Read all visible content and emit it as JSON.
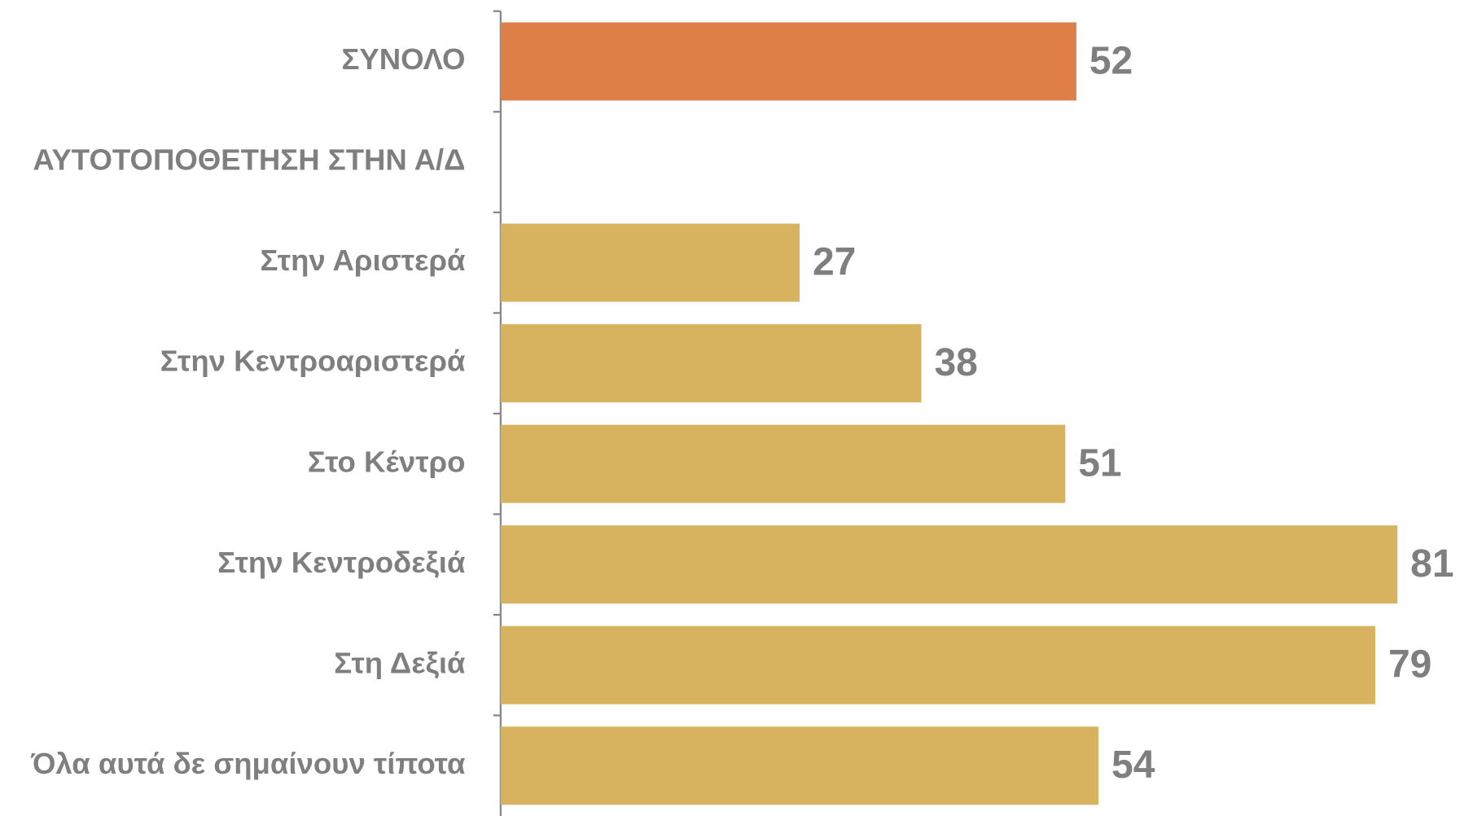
{
  "chart_data": {
    "type": "hbar",
    "categories": [
      "ΣΥΝΟΛΟ",
      "ΑΥΤΟΤΟΠΟΘΕΤΗΣΗ ΣΤΗΝ Α/Δ",
      "Στην Αριστερά",
      "Στην Κεντροαριστερά",
      "Στο Κέντρο",
      "Στην Κεντροδεξιά",
      "Στη Δεξιά",
      "Όλα αυτά δε σημαίνουν τίποτα"
    ],
    "values": [
      52,
      null,
      27,
      38,
      51,
      81,
      79,
      54
    ],
    "colors": [
      "#dd7f47",
      "#d8b35f",
      "#d8b35f",
      "#d8b35f",
      "#d8b35f",
      "#d8b35f",
      "#d8b35f",
      "#d8b35f"
    ],
    "xlim": [
      0,
      100
    ]
  }
}
